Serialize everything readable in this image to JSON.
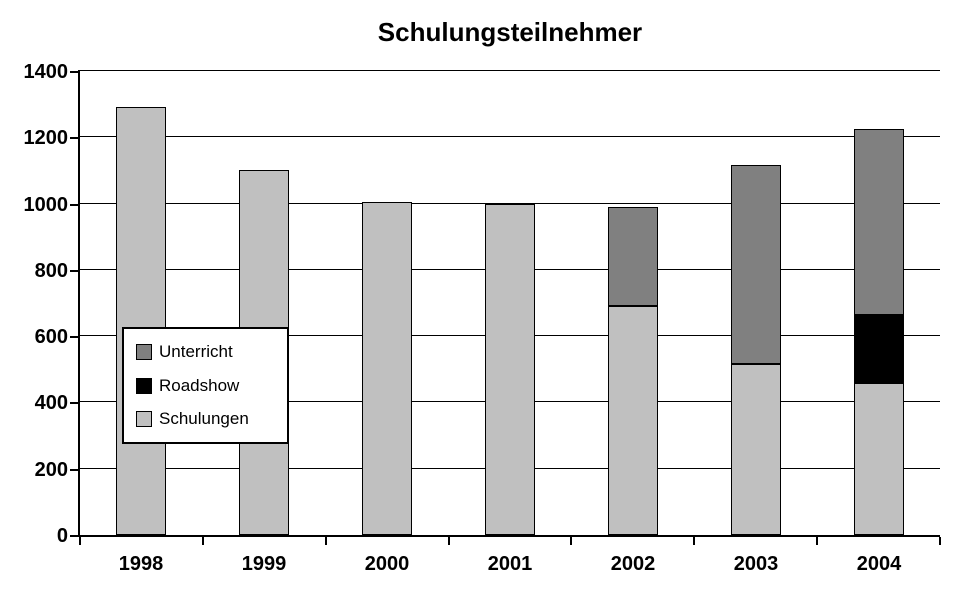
{
  "chart_data": {
    "type": "bar",
    "stacked": true,
    "title": "Schulungsteilnehmer",
    "categories": [
      "1998",
      "1999",
      "2000",
      "2001",
      "2002",
      "2003",
      "2004"
    ],
    "series": [
      {
        "name": "Schulungen",
        "color": "#c0c0c0",
        "values": [
          1290,
          1100,
          1005,
          1000,
          690,
          515,
          460
        ]
      },
      {
        "name": "Roadshow",
        "color": "#000000",
        "values": [
          0,
          0,
          0,
          0,
          0,
          0,
          205
        ]
      },
      {
        "name": "Unterricht",
        "color": "#808080",
        "values": [
          0,
          0,
          0,
          0,
          300,
          600,
          560
        ]
      }
    ],
    "totals": [
      1290,
      1100,
      1005,
      1000,
      990,
      1115,
      1225
    ],
    "xlabel": "",
    "ylabel": "",
    "ylim": [
      0,
      1400
    ],
    "ytick_step": 200,
    "ytick_labels": [
      "0",
      "200",
      "400",
      "600",
      "800",
      "1000",
      "1200",
      "1400"
    ],
    "grid": true,
    "legend": {
      "position": "middle-left",
      "entries": [
        {
          "label": "Unterricht",
          "color": "#808080"
        },
        {
          "label": "Roadshow",
          "color": "#000000"
        },
        {
          "label": "Schulungen",
          "color": "#c0c0c0"
        }
      ]
    },
    "colors": {
      "axis": "#000000",
      "grid": "#000000",
      "background": "#ffffff",
      "text": "#000000"
    }
  }
}
